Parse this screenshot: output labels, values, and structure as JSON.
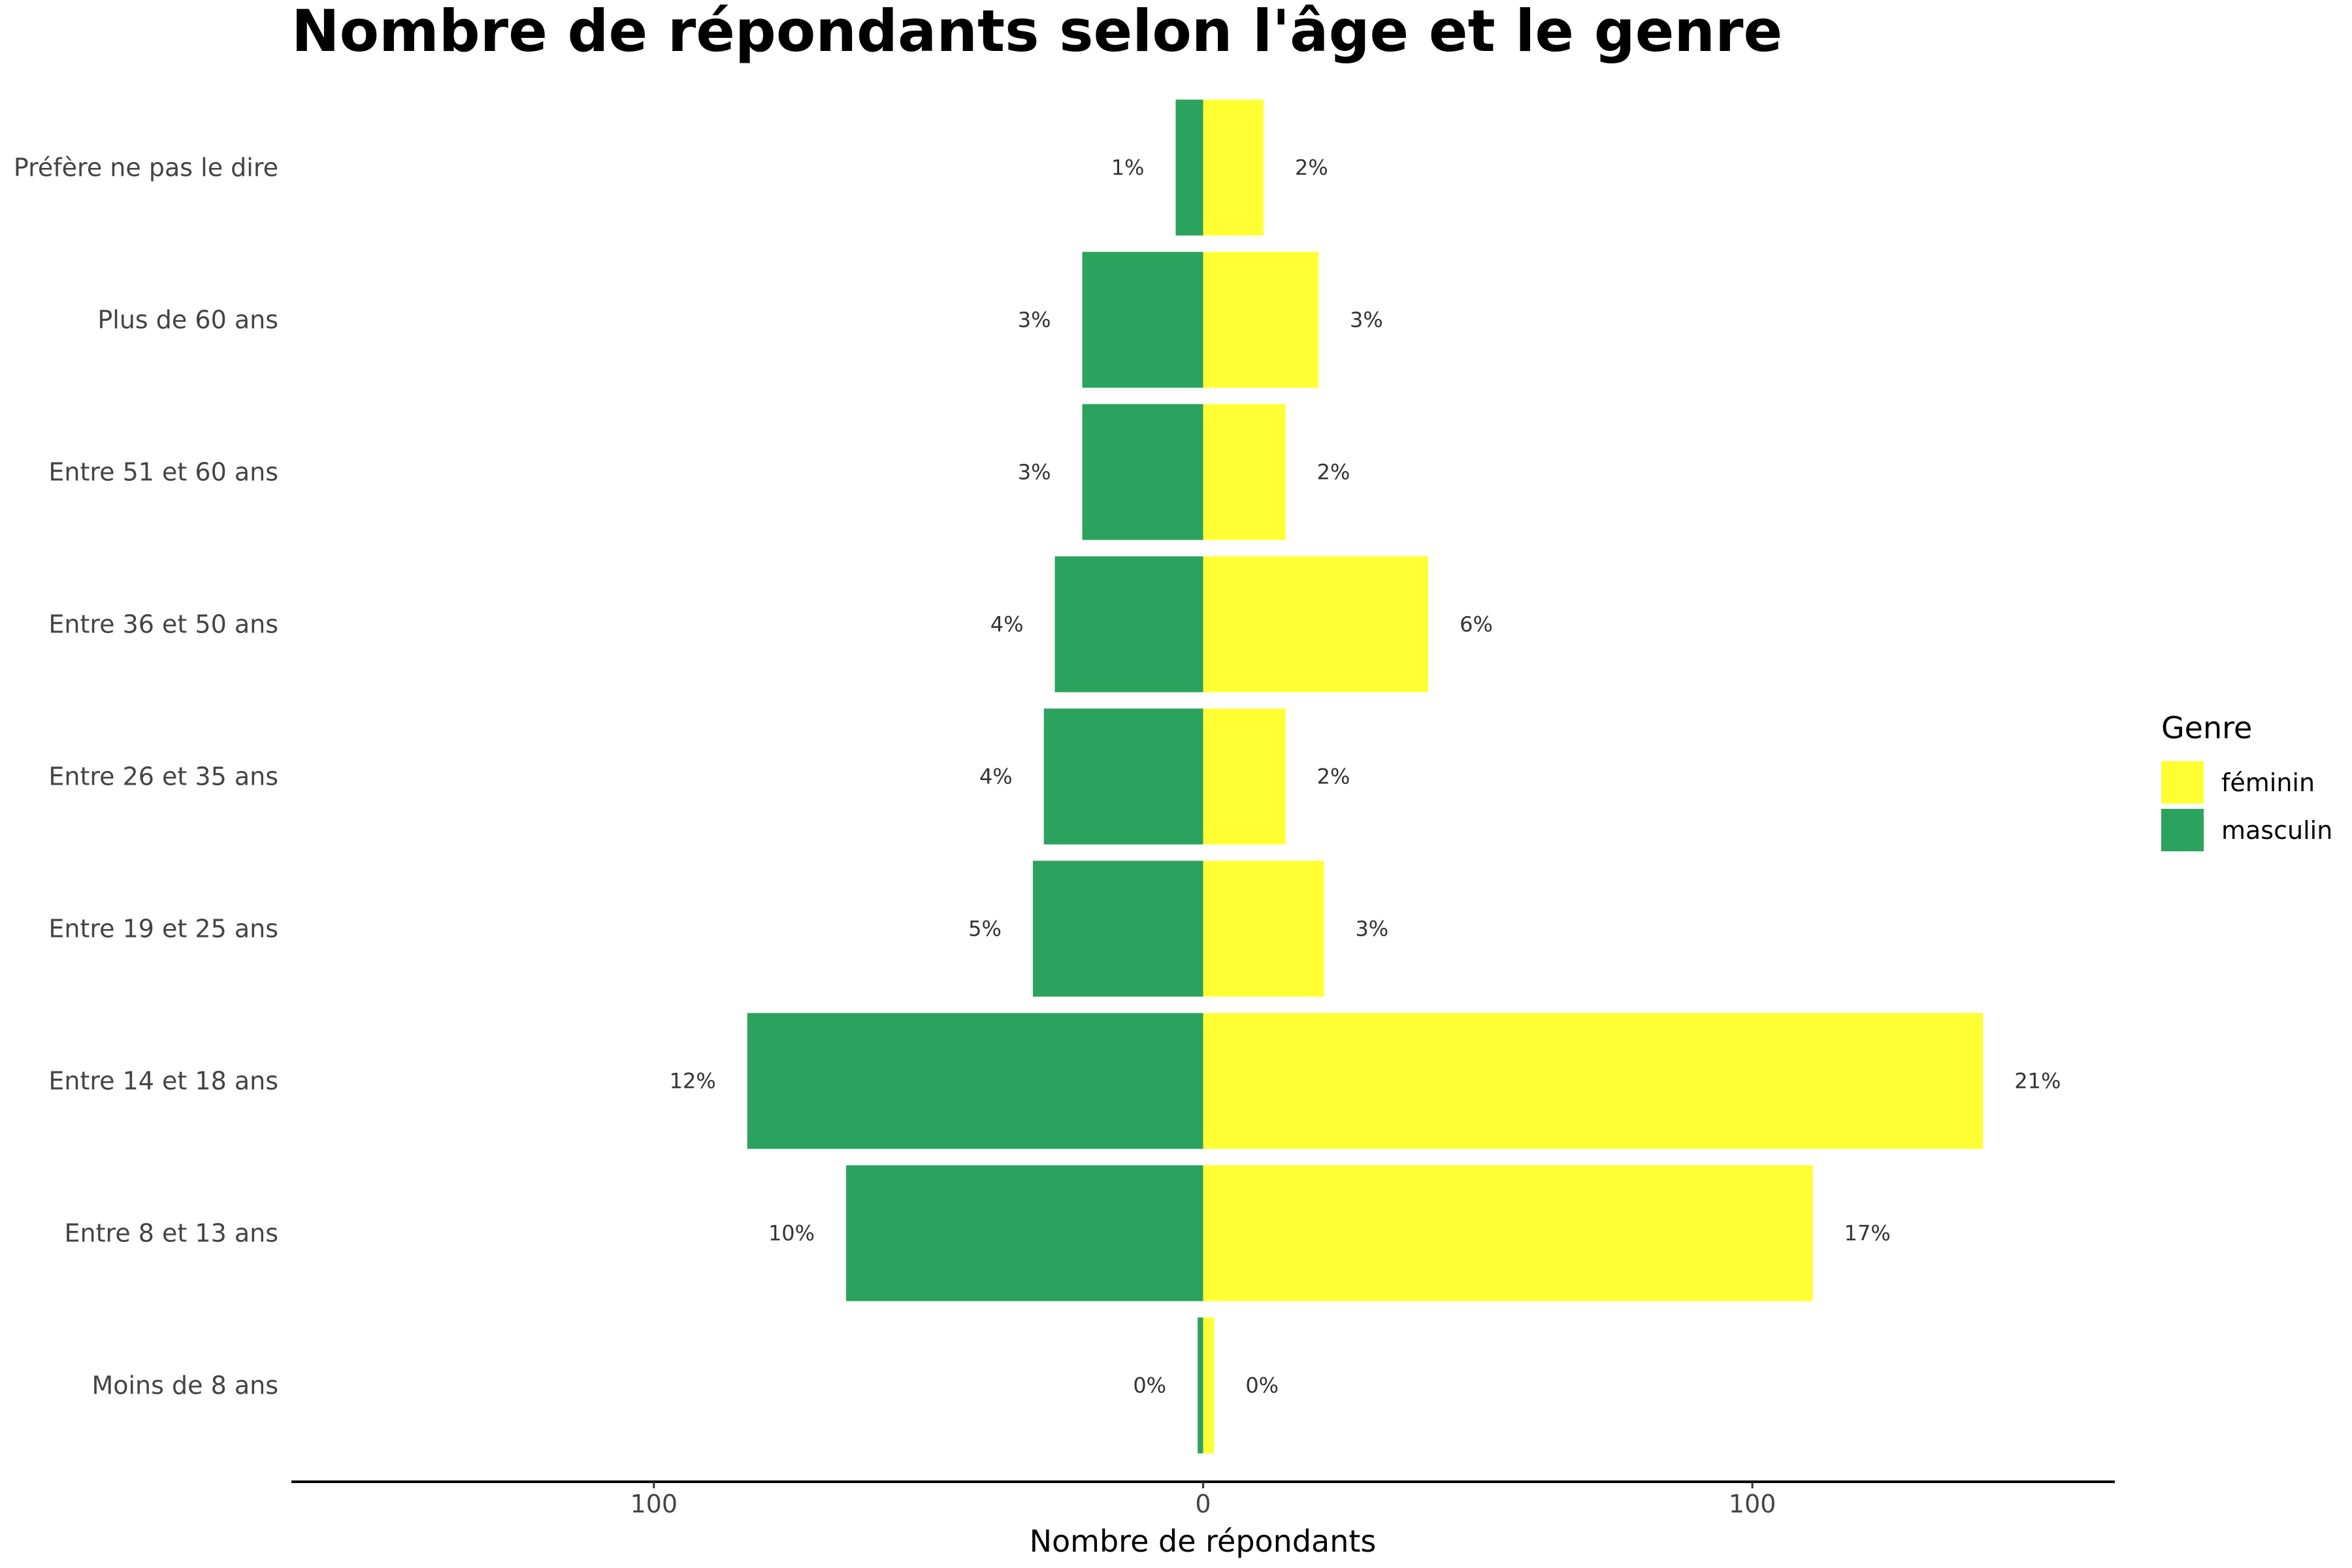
{
  "chart_data": {
    "type": "bar",
    "orientation": "horizontal",
    "diverging": true,
    "title": "Nombre de répondants selon l'âge et le genre",
    "xlabel": "Nombre de répondants",
    "ylabel": "",
    "xlim": [
      -166,
      166
    ],
    "x_ticks": [
      {
        "value": -100,
        "label": "100"
      },
      {
        "value": 0,
        "label": "0"
      },
      {
        "value": 100,
        "label": "100"
      }
    ],
    "grid": false,
    "categories": [
      "Préfère ne pas le dire",
      "Plus de 60 ans",
      "Entre 51 et 60 ans",
      "Entre 36 et 50 ans",
      "Entre 26 et 35 ans",
      "Entre 19 et 25 ans",
      "Entre 14 et 18 ans",
      "Entre 8 et 13 ans",
      "Moins de 8 ans"
    ],
    "series": [
      {
        "name": "féminin",
        "color": "#FFFF33",
        "direction": "right",
        "values": [
          11,
          21,
          15,
          41,
          15,
          22,
          142,
          111,
          2
        ],
        "labels": [
          "2%",
          "3%",
          "2%",
          "6%",
          "2%",
          "3%",
          "21%",
          "17%",
          "0%"
        ]
      },
      {
        "name": "masculin",
        "color": "#2CA25F",
        "direction": "left",
        "values": [
          5,
          22,
          22,
          27,
          29,
          31,
          83,
          65,
          1
        ],
        "labels": [
          "1%",
          "3%",
          "3%",
          "4%",
          "4%",
          "5%",
          "12%",
          "10%",
          "0%"
        ]
      }
    ],
    "legend": {
      "title": "Genre",
      "position": "right",
      "items": [
        "féminin",
        "masculin"
      ]
    }
  }
}
